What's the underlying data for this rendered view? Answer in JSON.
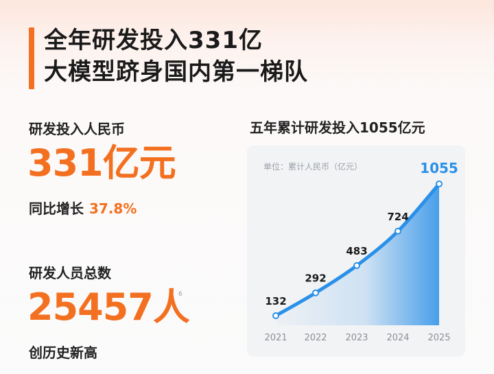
{
  "headline": {
    "line1": "全年研发投入331亿",
    "line2": "大模型跻身国内第一梯队"
  },
  "rd_investment": {
    "label": "研发投入人民币",
    "value": "331亿元",
    "growth_label": "同比增长",
    "growth_value": "37.8%"
  },
  "rd_staff": {
    "label": "研发人员总数",
    "value": "25457人",
    "note": "创历史新高",
    "footnote_mark": "6"
  },
  "colors": {
    "accent": "#f37021",
    "line": "#2a90e8",
    "label_highlight": "#2a90e8"
  },
  "chart_data": {
    "type": "area",
    "title": "五年累计研发投入1055亿元",
    "unit_label": "单位：累计人民币（亿元）",
    "categories": [
      "2021",
      "2022",
      "2023",
      "2024",
      "2025"
    ],
    "values": [
      132,
      292,
      483,
      724,
      1055
    ],
    "data_labels": [
      "132",
      "292",
      "483",
      "724",
      "1055"
    ],
    "grid": false,
    "ylim": [
      132,
      1055
    ]
  }
}
